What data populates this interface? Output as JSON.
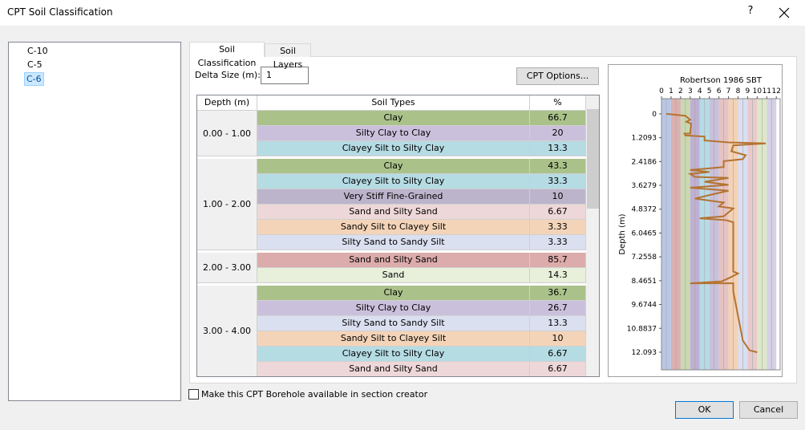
{
  "window": {
    "title": "CPT Soil Classification",
    "help": "?"
  },
  "boreholes": {
    "items": [
      "C-10",
      "C-5",
      "C-6"
    ],
    "selected": 2
  },
  "tabs": {
    "items": [
      "Soil Classification",
      "Soil Layers"
    ],
    "active": 0
  },
  "delta": {
    "label": "Delta Size (m):",
    "value": "1"
  },
  "cpt_options_button": "CPT Options...",
  "table": {
    "headers": [
      "Depth (m)",
      "Soil Types",
      "%"
    ],
    "groups": [
      {
        "depth": "0.00 - 1.00",
        "rows": [
          {
            "type": "Clay",
            "percent": 66.7,
            "color": "#aac28a"
          },
          {
            "type": "Silty Clay to Clay",
            "percent": 20,
            "color": "#cbc0dc"
          },
          {
            "type": "Clayey Silt to Silty Clay",
            "percent": 13.3,
            "color": "#b5dbe3"
          }
        ]
      },
      {
        "depth": "1.00 - 2.00",
        "rows": [
          {
            "type": "Clay",
            "percent": 43.3,
            "color": "#aac28a"
          },
          {
            "type": "Clayey Silt to Silty Clay",
            "percent": 33.3,
            "color": "#b5dbe3"
          },
          {
            "type": "Very Stiff Fine-Grained",
            "percent": 10,
            "color": "#bcb4cb"
          },
          {
            "type": "Sand and Silty Sand",
            "percent": 6.67,
            "color": "#eed7d8"
          },
          {
            "type": "Sandy Silt to Clayey Silt",
            "percent": 3.33,
            "color": "#f4d4b8"
          },
          {
            "type": "Silty Sand to Sandy Silt",
            "percent": 3.33,
            "color": "#dbe0f0"
          }
        ]
      },
      {
        "depth": "2.00 - 3.00",
        "rows": [
          {
            "type": "Sand and Silty Sand",
            "percent": 85.7,
            "color": "#dcabab"
          },
          {
            "type": "Sand",
            "percent": 14.3,
            "color": "#e8efda"
          }
        ]
      },
      {
        "depth": "3.00 - 4.00",
        "rows": [
          {
            "type": "Clay",
            "percent": 36.7,
            "color": "#aac28a"
          },
          {
            "type": "Silty Clay to Clay",
            "percent": 26.7,
            "color": "#cbc0dc"
          },
          {
            "type": "Silty Sand to Sandy Silt",
            "percent": 13.3,
            "color": "#dbe0f0"
          },
          {
            "type": "Sandy Silt to Clayey Silt",
            "percent": 10,
            "color": "#f4d4b8"
          },
          {
            "type": "Clayey Silt to Silty Clay",
            "percent": 6.67,
            "color": "#b5dbe3"
          },
          {
            "type": "Sand and Silty Sand",
            "percent": 6.67,
            "color": "#eed7d8"
          }
        ]
      }
    ]
  },
  "chart_data": {
    "type": "line",
    "title": "Robertson 1986 SBT",
    "y_label": "Depth (m)",
    "xlim": [
      0,
      12.4
    ],
    "xticks": [
      0,
      1,
      2,
      3,
      4,
      5,
      6,
      7,
      8,
      9,
      10,
      11,
      12
    ],
    "ylim": [
      -0.77,
      12.99
    ],
    "y_inverted": true,
    "yticks": [
      0,
      1.2093,
      2.4186,
      3.6279,
      4.8372,
      6.0465,
      7.2558,
      8.4651,
      9.6744,
      10.8837,
      12.093
    ],
    "band_colors": [
      "#b9c7e6",
      "#dbb0b0",
      "#c9d8b0",
      "#bfb0d4",
      "#b5dce6",
      "#c8c0dc",
      "#e5c3c3",
      "#f3d2b5",
      "#dadff0",
      "#e8c9cc",
      "#dde8c6",
      "#d6d0e6"
    ],
    "x": [
      0.5,
      2.5,
      3,
      2.6,
      3.1,
      3,
      2.4,
      2.5,
      4.5,
      4.5,
      7,
      10.9,
      7.5,
      7.3,
      8.8,
      8.5,
      6.5,
      6.5,
      3,
      5,
      3,
      3.5,
      7,
      4.5,
      7,
      3,
      7,
      5.2,
      3.5,
      6.5,
      6,
      7.5,
      7,
      6.5,
      4,
      6.8,
      7.5,
      7.5,
      8,
      7.2,
      6.3,
      3,
      7.5,
      7.5,
      7.7,
      8.5,
      9.2,
      10
    ],
    "series": [
      {
        "color": "#b5732f",
        "values": [
          0,
          0.1,
          0.3,
          0.4,
          0.5,
          1.0,
          1.0,
          1.1,
          1.15,
          1.35,
          1.45,
          1.5,
          1.6,
          1.9,
          2.1,
          2.3,
          2.4,
          2.7,
          2.85,
          2.95,
          3.05,
          3.2,
          3.25,
          3.45,
          3.6,
          3.75,
          3.9,
          4.1,
          4.3,
          4.5,
          4.7,
          4.8,
          5.0,
          5.2,
          5.3,
          5.4,
          5.5,
          8.0,
          8.1,
          8.3,
          8.5,
          8.6,
          8.6,
          9.0,
          9.5,
          11.5,
          12.0,
          12.1
        ]
      }
    ]
  },
  "checkbox_label": "Make this CPT Borehole available in section creator",
  "buttons": [
    "OK",
    "Cancel"
  ]
}
